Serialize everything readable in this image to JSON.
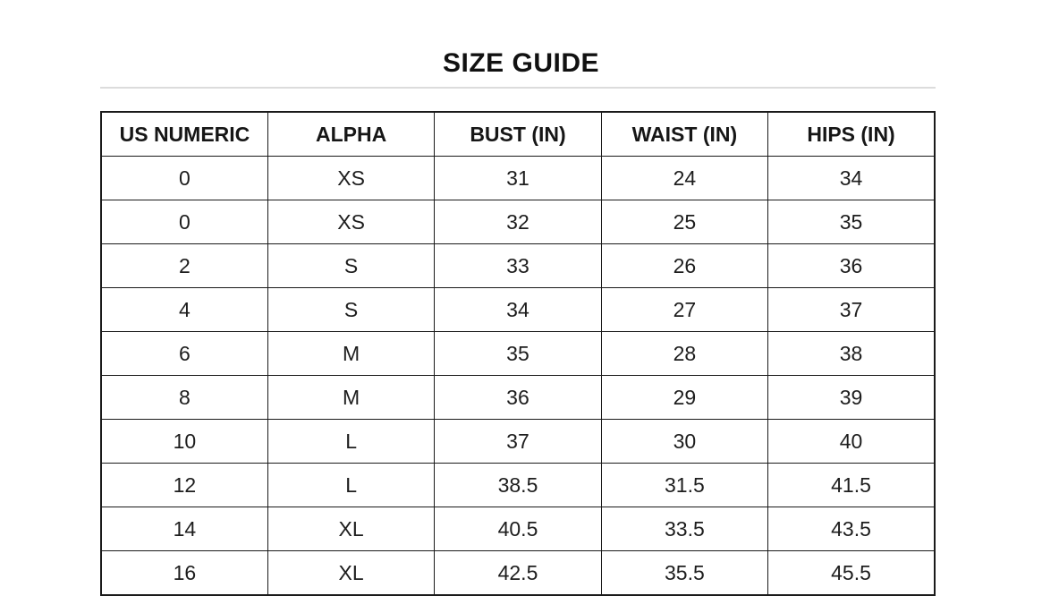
{
  "title": "SIZE GUIDE",
  "colors": {
    "background": "#ffffff",
    "table_border": "#1a1a1a",
    "text": "#1d1d1d",
    "divider": "#dcdcdc"
  },
  "table": {
    "columns": [
      "US NUMERIC",
      "ALPHA",
      "BUST (IN)",
      "WAIST (IN)",
      "HIPS (IN)"
    ],
    "rows": [
      [
        "0",
        "XS",
        "31",
        "24",
        "34"
      ],
      [
        "0",
        "XS",
        "32",
        "25",
        "35"
      ],
      [
        "2",
        "S",
        "33",
        "26",
        "36"
      ],
      [
        "4",
        "S",
        "34",
        "27",
        "37"
      ],
      [
        "6",
        "M",
        "35",
        "28",
        "38"
      ],
      [
        "8",
        "M",
        "36",
        "29",
        "39"
      ],
      [
        "10",
        "L",
        "37",
        "30",
        "40"
      ],
      [
        "12",
        "L",
        "38.5",
        "31.5",
        "41.5"
      ],
      [
        "14",
        "XL",
        "40.5",
        "33.5",
        "43.5"
      ],
      [
        "16",
        "XL",
        "42.5",
        "35.5",
        "45.5"
      ]
    ]
  }
}
